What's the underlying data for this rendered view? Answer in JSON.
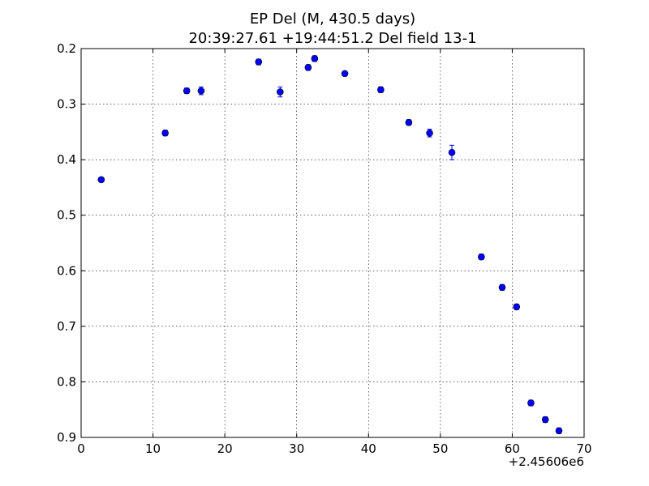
{
  "chart_data": {
    "type": "scatter",
    "title": "EP Del (M, 430.5 days)",
    "subtitle": "20:39:27.61 +19:44:51.2 Del field 13-1",
    "xlabel": "",
    "ylabel": "",
    "x_offset_label": "+2.45606e6",
    "xlim": [
      0,
      70
    ],
    "ylim": [
      0.9,
      0.2
    ],
    "y_inverted": true,
    "grid": true,
    "x_ticks": [
      0,
      10,
      20,
      30,
      40,
      50,
      60,
      70
    ],
    "y_ticks": [
      0.2,
      0.3,
      0.4,
      0.5,
      0.6,
      0.7,
      0.8,
      0.9
    ],
    "x_tick_labels": [
      "0",
      "10",
      "20",
      "30",
      "40",
      "50",
      "60",
      "70"
    ],
    "y_tick_labels": [
      "0.2",
      "0.3",
      "0.4",
      "0.5",
      "0.6",
      "0.7",
      "0.8",
      "0.9"
    ],
    "marker_color": "#0000ff",
    "series": [
      {
        "points": [
          {
            "x": 2.8,
            "y": 0.436,
            "err": 0.004
          },
          {
            "x": 11.7,
            "y": 0.352,
            "err": 0.005
          },
          {
            "x": 14.7,
            "y": 0.276,
            "err": 0.005
          },
          {
            "x": 16.7,
            "y": 0.276,
            "err": 0.007
          },
          {
            "x": 24.7,
            "y": 0.224,
            "err": 0.005
          },
          {
            "x": 27.7,
            "y": 0.278,
            "err": 0.009
          },
          {
            "x": 31.6,
            "y": 0.234,
            "err": 0.005
          },
          {
            "x": 32.5,
            "y": 0.218,
            "err": 0.005
          },
          {
            "x": 36.7,
            "y": 0.245,
            "err": 0.004
          },
          {
            "x": 41.7,
            "y": 0.274,
            "err": 0.005
          },
          {
            "x": 45.6,
            "y": 0.333,
            "err": 0.005
          },
          {
            "x": 48.5,
            "y": 0.352,
            "err": 0.007
          },
          {
            "x": 51.6,
            "y": 0.387,
            "err": 0.013
          },
          {
            "x": 55.7,
            "y": 0.575,
            "err": 0.005
          },
          {
            "x": 58.6,
            "y": 0.63,
            "err": 0.005
          },
          {
            "x": 60.6,
            "y": 0.665,
            "err": 0.005
          },
          {
            "x": 62.6,
            "y": 0.838,
            "err": 0.005
          },
          {
            "x": 64.6,
            "y": 0.868,
            "err": 0.005
          },
          {
            "x": 66.5,
            "y": 0.888,
            "err": 0.005
          }
        ]
      }
    ]
  }
}
